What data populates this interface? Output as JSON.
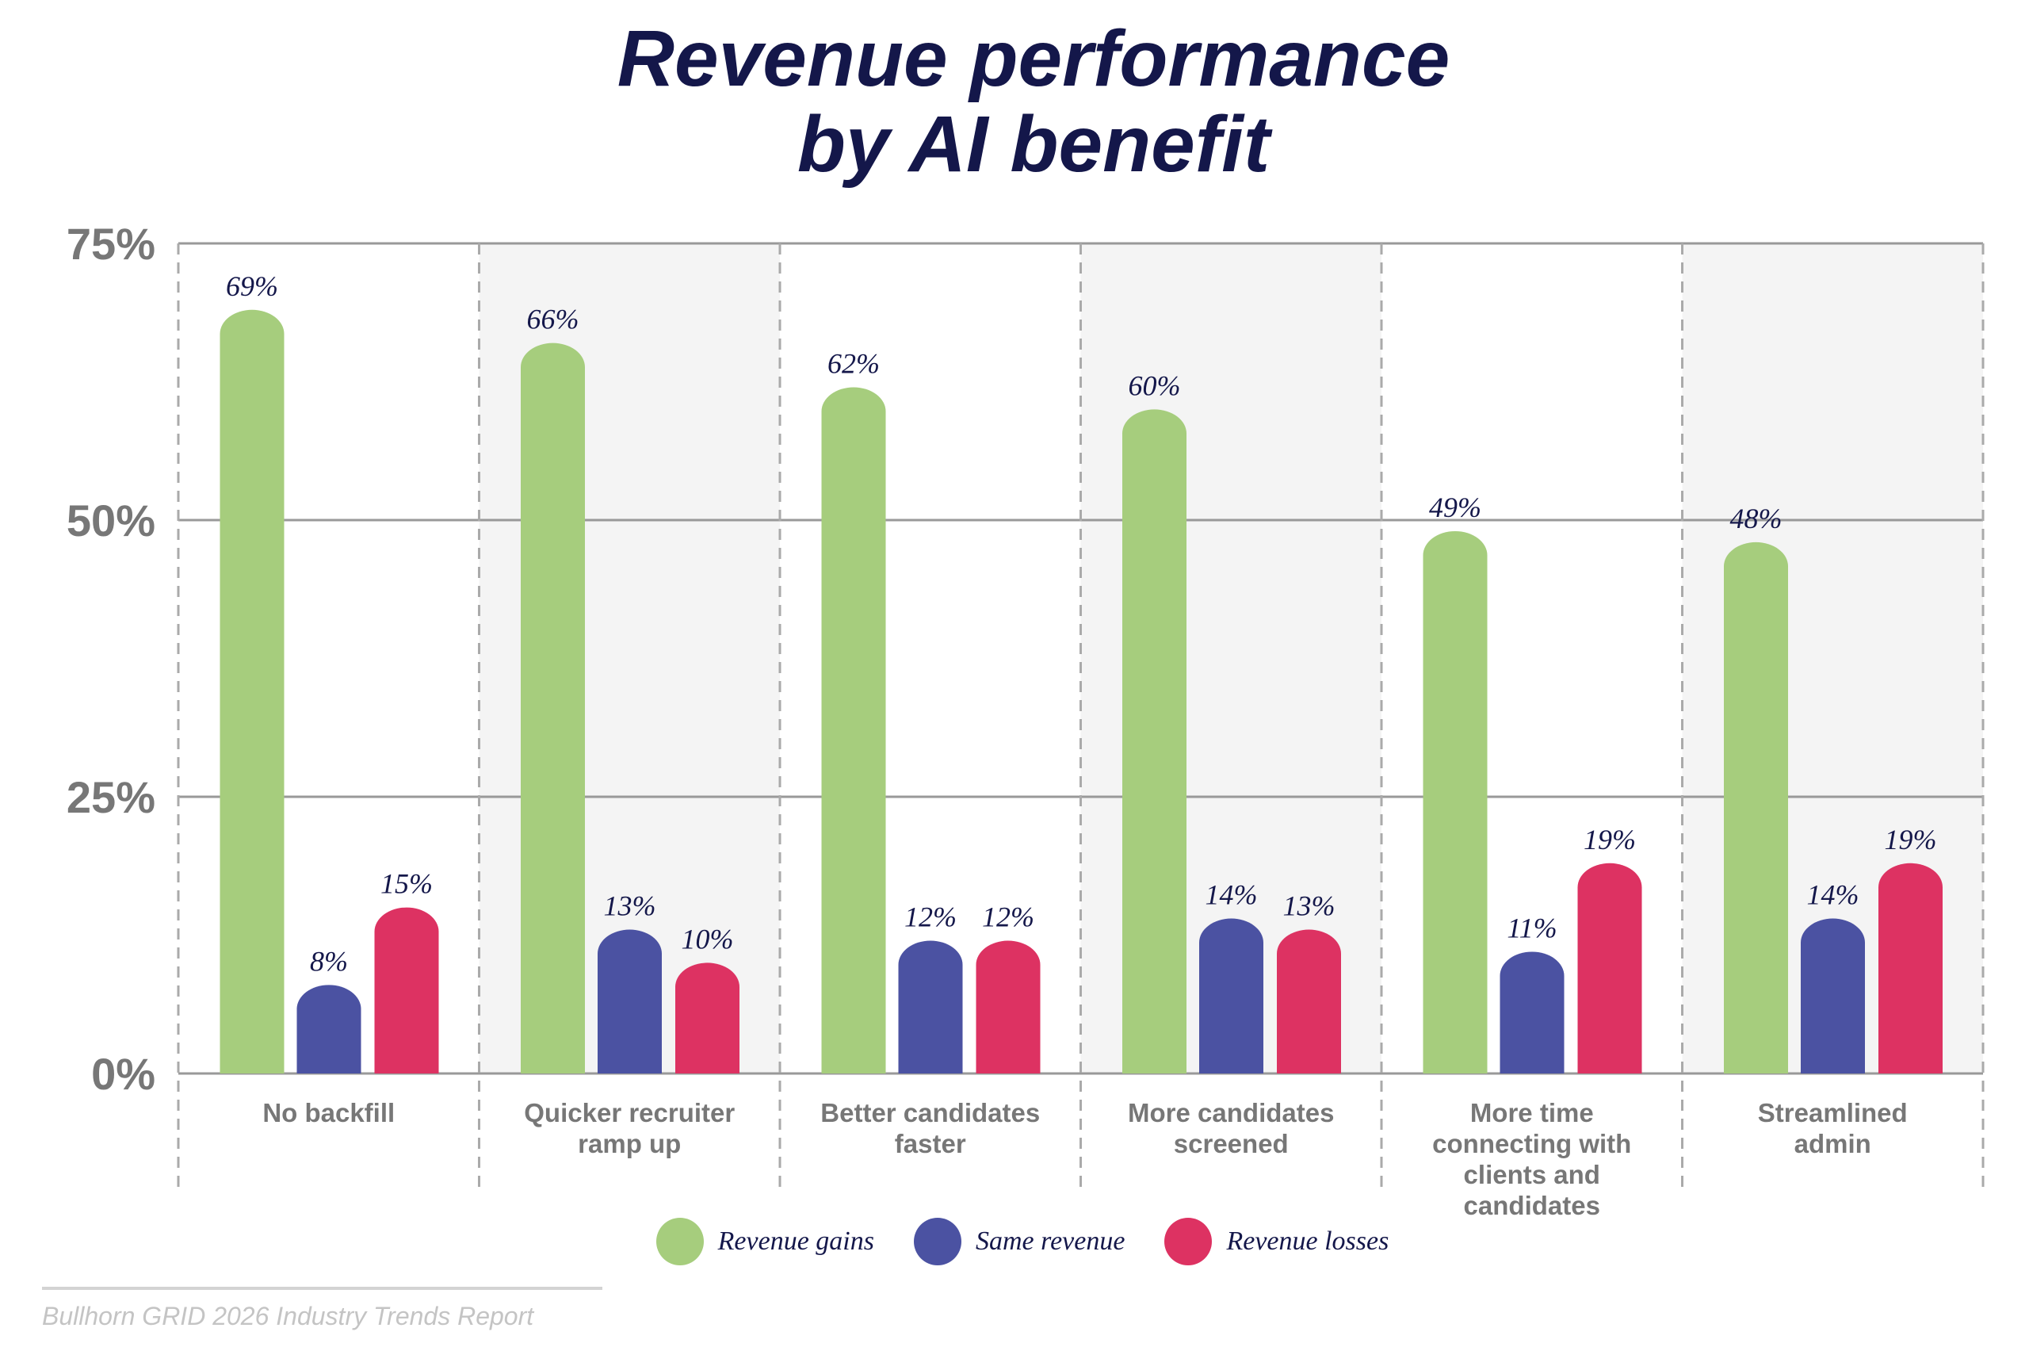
{
  "title_lines": [
    "Revenue performance",
    "by AI benefit"
  ],
  "chart_data": {
    "type": "bar",
    "title": "Revenue performance by AI benefit",
    "categories": [
      [
        "No backfill"
      ],
      [
        "Quicker recruiter",
        "ramp up"
      ],
      [
        "Better candidates",
        "faster"
      ],
      [
        "More candidates",
        "screened"
      ],
      [
        "More time",
        "connecting with",
        "clients and",
        "candidates"
      ],
      [
        "Streamlined",
        "admin"
      ]
    ],
    "series": [
      {
        "name": "Revenue gains",
        "color": "#a6cd7d",
        "values": [
          69,
          66,
          62,
          60,
          49,
          48
        ]
      },
      {
        "name": "Same revenue",
        "color": "#4b52a2",
        "values": [
          8,
          13,
          12,
          14,
          11,
          14
        ]
      },
      {
        "name": "Revenue losses",
        "color": "#dd3262",
        "values": [
          15,
          10,
          12,
          13,
          19,
          19
        ]
      }
    ],
    "ylim": [
      0,
      75
    ],
    "yticks": [
      0,
      25,
      50,
      75
    ],
    "ytick_labels": [
      "0%",
      "25%",
      "50%",
      "75%"
    ],
    "value_suffix": "%",
    "grid": true,
    "legend_position": "bottom",
    "alternate_shading": "#f4f4f4"
  },
  "footer": "Bullhorn GRID 2026 Industry Trends Report"
}
